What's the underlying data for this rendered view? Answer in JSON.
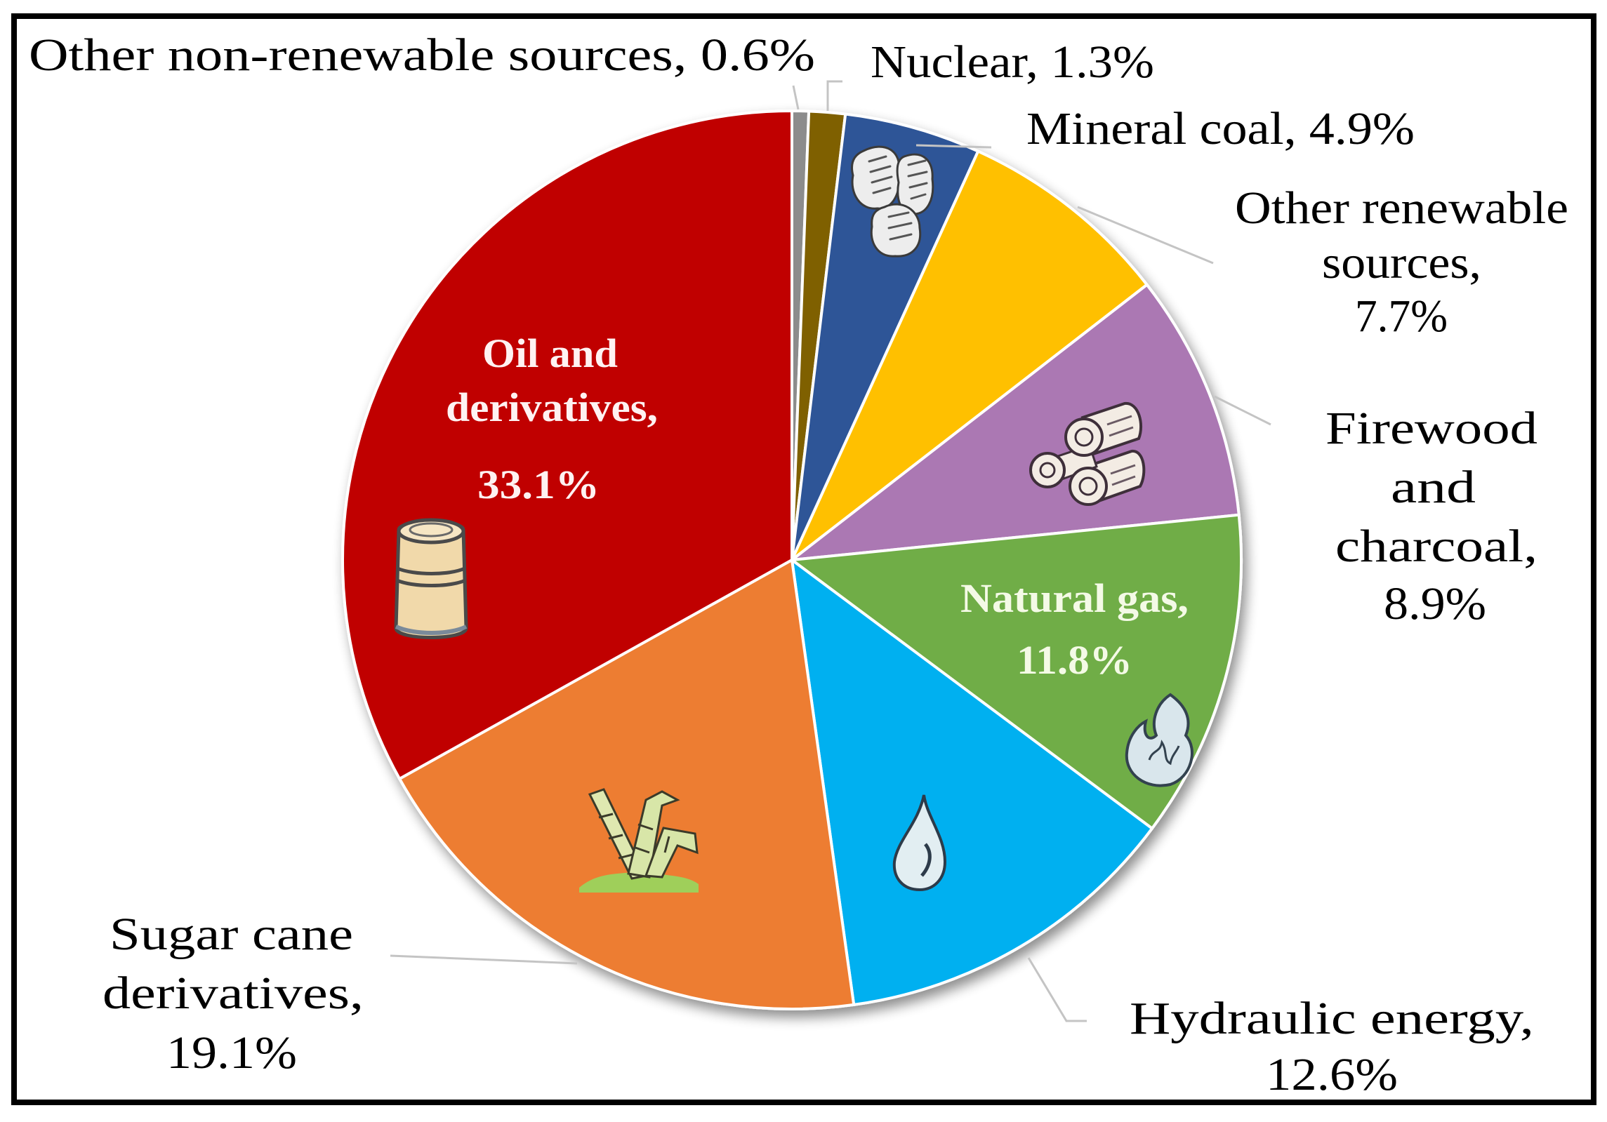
{
  "chart_data": {
    "type": "pie",
    "title": "",
    "start_angle_deg": 0,
    "direction": "clockwise",
    "slices": [
      {
        "id": "other-non-renewable",
        "label": "Other non-renewable sources",
        "value": 0.6,
        "color": "#8c8c8c"
      },
      {
        "id": "nuclear",
        "label": "Nuclear",
        "value": 1.3,
        "color": "#7f6000"
      },
      {
        "id": "mineral-coal",
        "label": "Mineral coal",
        "value": 4.9,
        "color": "#2f5597"
      },
      {
        "id": "other-renewable",
        "label": "Other renewable sources",
        "value": 7.7,
        "color": "#ffc000"
      },
      {
        "id": "firewood-charcoal",
        "label": "Firewood and charcoal",
        "value": 8.9,
        "color": "#ab78b3"
      },
      {
        "id": "natural-gas",
        "label": "Natural gas",
        "value": 11.8,
        "color": "#70ad47"
      },
      {
        "id": "hydraulic-energy",
        "label": "Hydraulic energy",
        "value": 12.6,
        "color": "#00b0f0"
      },
      {
        "id": "sugar-cane",
        "label": "Sugar cane derivatives",
        "value": 19.1,
        "color": "#ed7d31"
      },
      {
        "id": "oil",
        "label": "Oil and derivatives",
        "value": 33.1,
        "color": "#c00000"
      }
    ],
    "unit": "%"
  },
  "labels": {
    "other_non_renewable": {
      "line1": "Other non-renewable sources, 0.6%"
    },
    "nuclear": {
      "line1": "Nuclear, 1.3%"
    },
    "mineral_coal": {
      "line1": "Mineral  coal, 4.9%"
    },
    "other_renewable": {
      "line1": "Other renewable",
      "line2": "sources,",
      "line3": "7.7%"
    },
    "firewood": {
      "line1": "Firewood",
      "line2": "and",
      "line3": "charcoal,",
      "line4": "8.9%"
    },
    "natural_gas": {
      "line1": "Natural gas,",
      "line2": "11.8%"
    },
    "hydraulic": {
      "line1": "Hydraulic energy,",
      "line2": "12.6%"
    },
    "sugar_cane": {
      "line1": "Sugar cane",
      "line2": "derivatives,",
      "line3": "19.1%"
    },
    "oil": {
      "line1": "Oil and",
      "line2": "derivatives,",
      "line3": "33.1%"
    }
  },
  "icons": {
    "oil": "oil-barrel-icon",
    "coal": "coal-lumps-icon",
    "firewood": "firewood-logs-icon",
    "natural_gas": "gas-flame-icon",
    "hydraulic": "water-drop-icon",
    "sugar_cane": "sugar-cane-icon"
  },
  "colors": {
    "inner_label_oil": "#fff2f2",
    "inner_label_gas": "#f4fae6",
    "leader_line": "#c4c4c4",
    "frame": "#000000"
  }
}
